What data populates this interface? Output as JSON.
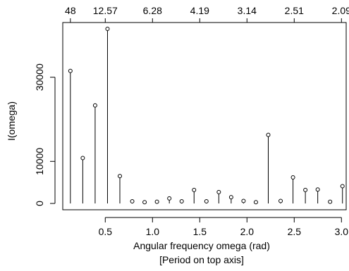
{
  "chart_data": {
    "type": "scatter",
    "style": "stem-plot with open circle markers",
    "xlabel": "Angular frequency omega (rad)",
    "xlabel_sub": "[Period on top axis]",
    "ylabel": "I(omega)",
    "xlim": [
      0.05,
      3.05
    ],
    "ylim": [
      -1500,
      43000
    ],
    "x_ticks": [
      0.5,
      1.0,
      1.5,
      2.0,
      2.5,
      3.0
    ],
    "x_tick_labels": [
      "0.5",
      "1.0",
      "1.5",
      "2.0",
      "2.5",
      "3.0"
    ],
    "y_ticks": [
      0,
      10000,
      30000
    ],
    "y_tick_labels": [
      "0",
      "10000",
      "30000"
    ],
    "top_ticks": [
      0.1309,
      0.5,
      1.0,
      1.5,
      2.0,
      2.5,
      3.0
    ],
    "top_tick_labels": [
      "48",
      "12.57",
      "6.28",
      "4.19",
      "3.14",
      "2.51",
      "2.09"
    ],
    "grid": false,
    "series": [
      {
        "x": [
          0.1309,
          0.2618,
          0.3927,
          0.5236,
          0.6545,
          0.7854,
          0.9163,
          1.0472,
          1.1781,
          1.309,
          1.4399,
          1.5708,
          1.7017,
          1.8326,
          1.9635,
          2.0944,
          2.2253,
          2.3562,
          2.4871,
          2.618,
          2.7489,
          2.8798,
          3.0107
        ],
        "y": [
          31500,
          10800,
          23300,
          41500,
          6500,
          500,
          300,
          400,
          1200,
          500,
          3200,
          500,
          2700,
          1500,
          600,
          300,
          16300,
          600,
          6200,
          3200,
          3300,
          400,
          4100
        ]
      }
    ]
  }
}
